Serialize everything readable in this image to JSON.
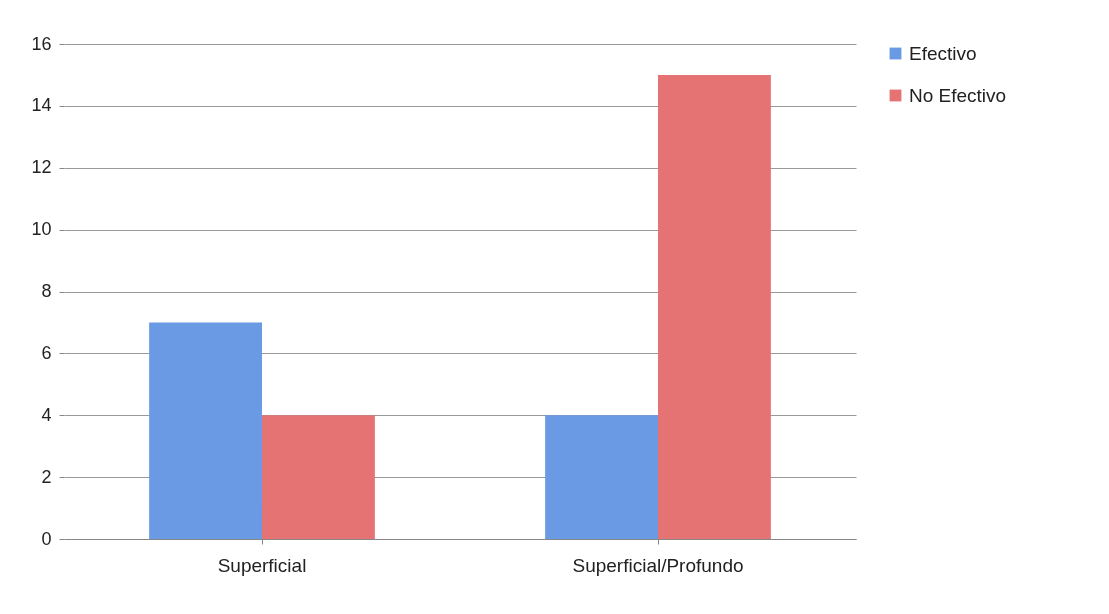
{
  "chart_data": {
    "type": "bar",
    "categories": [
      "Superficial",
      "Superficial/Profundo"
    ],
    "series": [
      {
        "name": "Efectivo",
        "color": "#6a9ae3",
        "values": [
          7,
          4
        ]
      },
      {
        "name": "No Efectivo",
        "color": "#e57373",
        "values": [
          4,
          15
        ]
      }
    ],
    "ylim": [
      0,
      16
    ],
    "yticks": [
      0,
      2,
      4,
      6,
      8,
      10,
      12,
      14,
      16
    ],
    "grid": "y",
    "legend": "right"
  }
}
